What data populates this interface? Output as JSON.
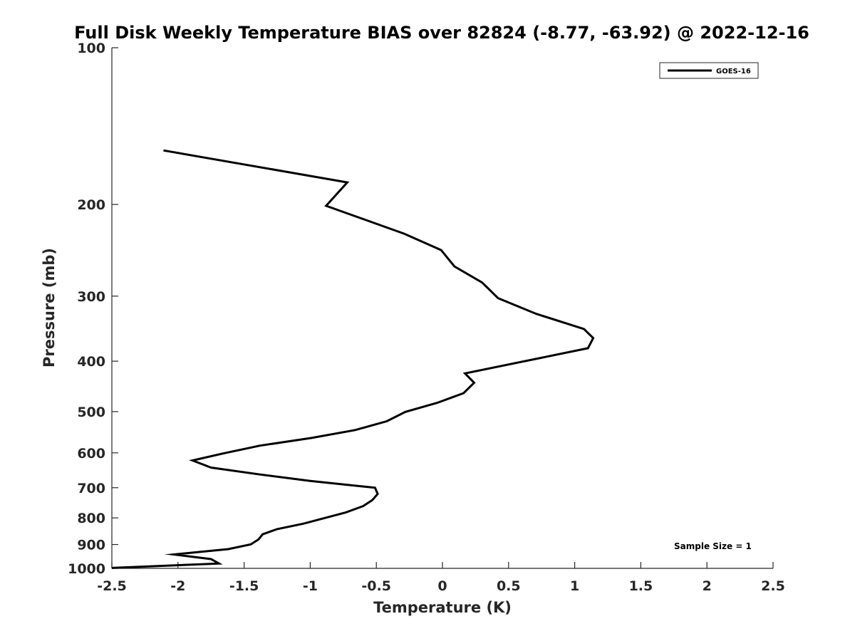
{
  "chart_data": {
    "type": "line",
    "title": "Full Disk Weekly Temperature BIAS over 82824 (-8.77, -63.92) @ 2022-12-16",
    "xlabel": "Temperature (K)",
    "ylabel": "Pressure (mb)",
    "xlim": [
      -2.5,
      2.5
    ],
    "ylim": [
      100,
      1000
    ],
    "y_scale": "log",
    "y_reversed": true,
    "grid": false,
    "legend_position": "top-right",
    "x_ticks": [
      -2.5,
      -2,
      -1.5,
      -1,
      -0.5,
      0,
      0.5,
      1,
      1.5,
      2,
      2.5
    ],
    "x_tick_labels": [
      "-2.5",
      "-2",
      "-1.5",
      "-1",
      "-0.5",
      "0",
      "0.5",
      "1",
      "1.5",
      "2",
      "2.5"
    ],
    "y_ticks": [
      100,
      200,
      300,
      400,
      500,
      600,
      700,
      800,
      900,
      1000
    ],
    "y_tick_labels": [
      "100",
      "200",
      "300",
      "400",
      "500",
      "600",
      "700",
      "800",
      "900",
      "1000"
    ],
    "annotation": "Sample Size = 1",
    "series": [
      {
        "name": "GOES-16",
        "color": "#000000",
        "points": [
          [
            -2.11,
            157.5
          ],
          [
            -0.72,
            181.4
          ],
          [
            -0.88,
            201.2
          ],
          [
            -0.29,
            227.6
          ],
          [
            -0.01,
            244.7
          ],
          [
            0.09,
            263.0
          ],
          [
            0.3,
            282.5
          ],
          [
            0.42,
            302.7
          ],
          [
            0.71,
            324.5
          ],
          [
            1.07,
            346.9
          ],
          [
            1.14,
            361.2
          ],
          [
            1.1,
            377.7
          ],
          [
            0.17,
            422.3
          ],
          [
            0.24,
            440.0
          ],
          [
            0.16,
            460.7
          ],
          [
            -0.04,
            481.0
          ],
          [
            -0.28,
            500.5
          ],
          [
            -0.42,
            521.6
          ],
          [
            -0.66,
            542.4
          ],
          [
            -0.99,
            561.8
          ],
          [
            -1.38,
            581.1
          ],
          [
            -1.65,
            600.8
          ],
          [
            -1.89,
            620.6
          ],
          [
            -1.75,
            640.3
          ],
          [
            -1.38,
            660.2
          ],
          [
            -1.0,
            679.2
          ],
          [
            -0.51,
            700.0
          ],
          [
            -0.49,
            719.6
          ],
          [
            -0.53,
            739.3
          ],
          [
            -0.6,
            759.4
          ],
          [
            -0.73,
            780.7
          ],
          [
            -1.05,
            820.4
          ],
          [
            -1.25,
            840.6
          ],
          [
            -1.36,
            860.1
          ],
          [
            -1.39,
            879.3
          ],
          [
            -1.45,
            899.5
          ],
          [
            -1.62,
            918.6
          ],
          [
            -2.03,
            940.3
          ],
          [
            -1.75,
            959.8
          ],
          [
            -1.69,
            978.9
          ],
          [
            -2.5,
            998.0
          ]
        ]
      }
    ]
  }
}
